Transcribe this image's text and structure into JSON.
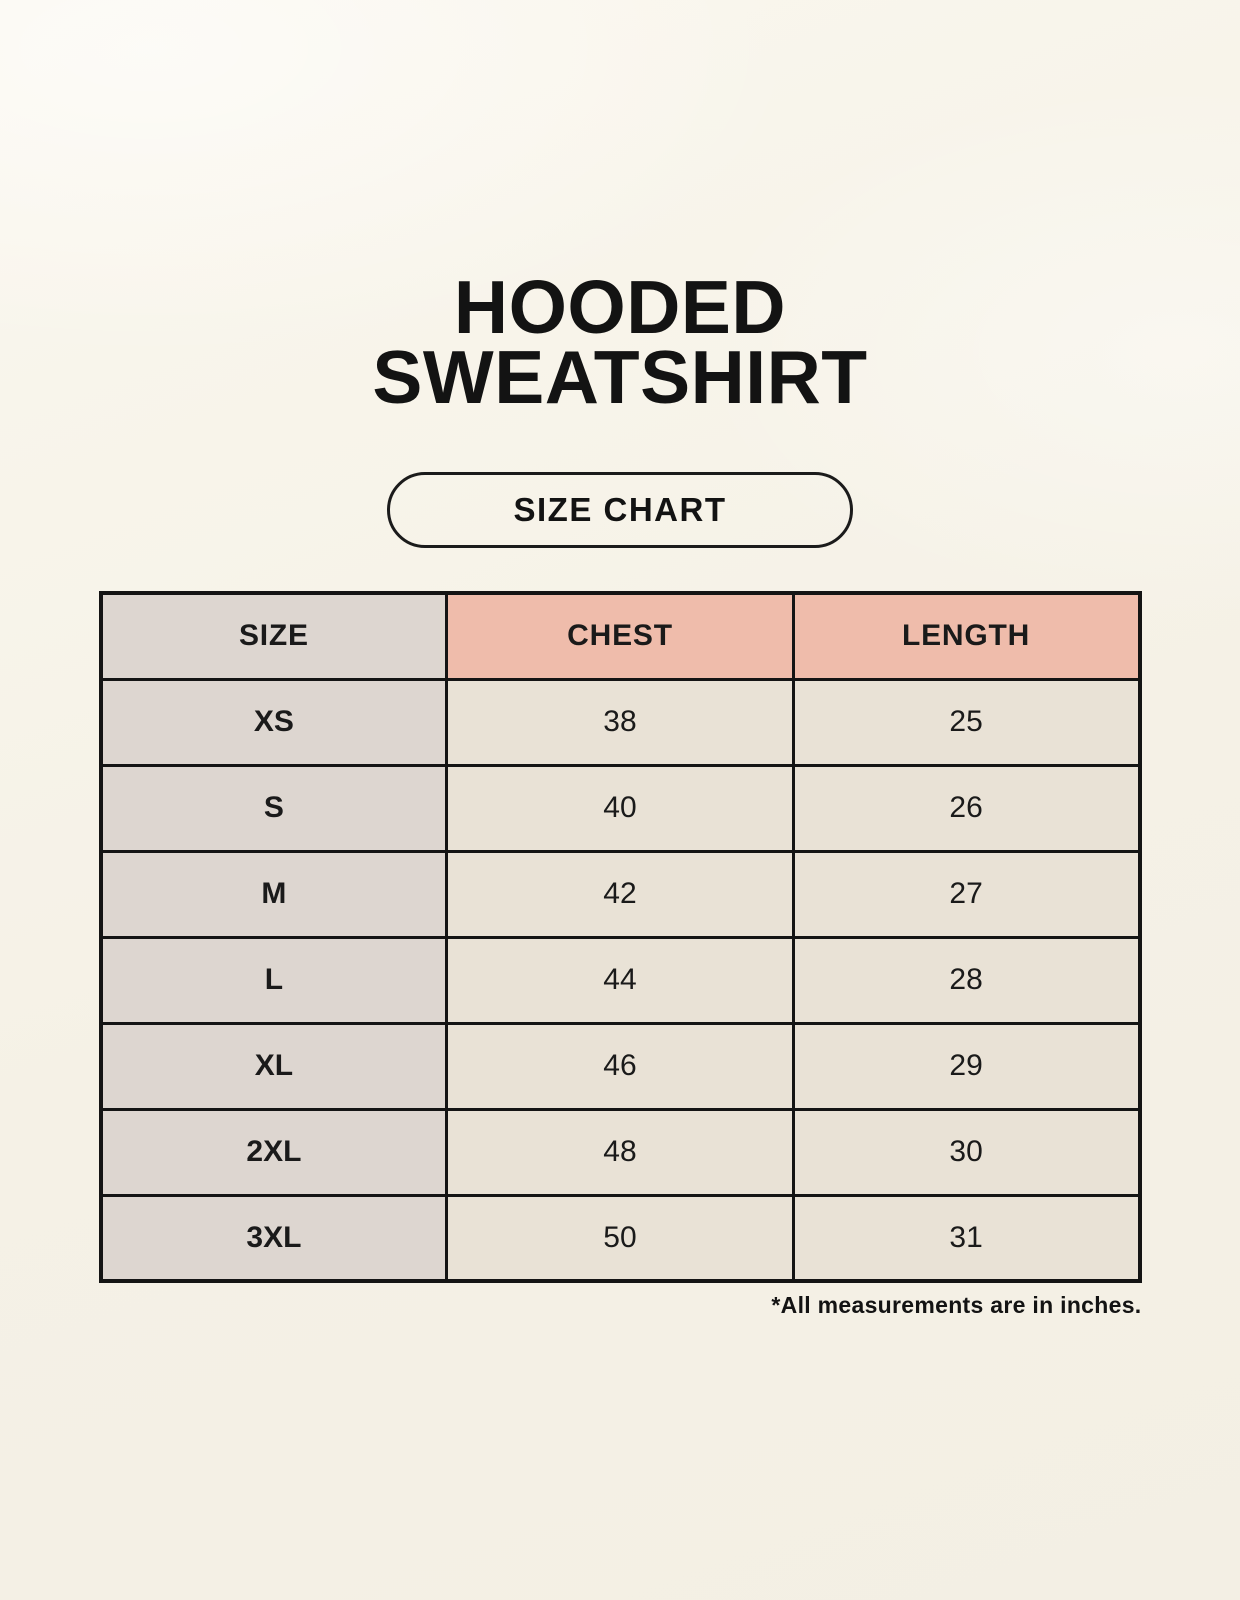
{
  "header": {
    "title_line1": "HOODED",
    "title_line2": "SWEATSHIRT",
    "badge_label": "SIZE CHART"
  },
  "footnote": "*All measurements are in inches.",
  "chart_data": {
    "type": "table",
    "title": "HOODED SWEATSHIRT SIZE CHART",
    "units": "inches",
    "columns": [
      "SIZE",
      "CHEST",
      "LENGTH"
    ],
    "rows": [
      {
        "size": "XS",
        "chest": 38,
        "length": 25
      },
      {
        "size": "S",
        "chest": 40,
        "length": 26
      },
      {
        "size": "M",
        "chest": 42,
        "length": 27
      },
      {
        "size": "L",
        "chest": 44,
        "length": 28
      },
      {
        "size": "XL",
        "chest": 46,
        "length": 29
      },
      {
        "size": "2XL",
        "chest": 48,
        "length": 30
      },
      {
        "size": "3XL",
        "chest": 50,
        "length": 31
      }
    ]
  },
  "colors": {
    "background": "#f6f2e8",
    "accent_header": "#efbcab",
    "size_column": "#ddd6d0",
    "data_cell": "#e9e2d6",
    "border": "#141414",
    "text": "#1a1a1a"
  }
}
